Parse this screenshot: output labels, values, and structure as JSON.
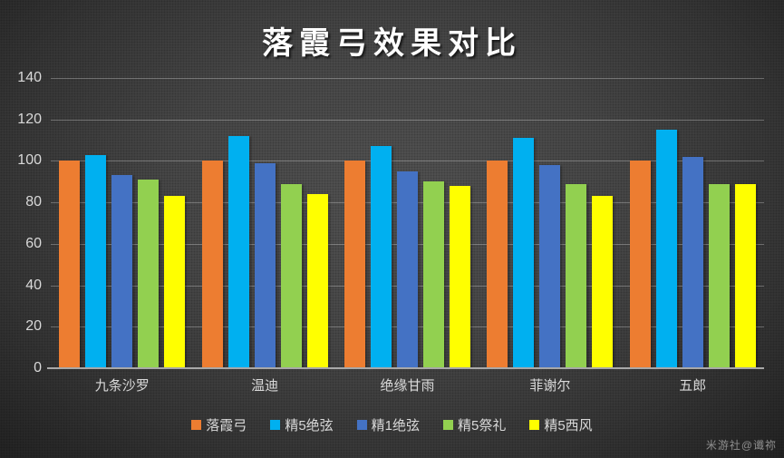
{
  "watermark": "米游社@谶祢",
  "chart_data": {
    "type": "bar",
    "title": "落霞弓效果对比",
    "categories": [
      "九条沙罗",
      "温迪",
      "绝缘甘雨",
      "菲谢尔",
      "五郎"
    ],
    "series": [
      {
        "name": "落霞弓",
        "color": "#ED7D31",
        "values": [
          100,
          100,
          100,
          100,
          100
        ]
      },
      {
        "name": "精5绝弦",
        "color": "#00B0F0",
        "values": [
          103,
          112,
          107,
          111,
          115
        ]
      },
      {
        "name": "精1绝弦",
        "color": "#4472C4",
        "values": [
          93,
          99,
          95,
          98,
          102
        ]
      },
      {
        "name": "精5祭礼",
        "color": "#92D050",
        "values": [
          91,
          89,
          90,
          89,
          89
        ]
      },
      {
        "name": "精5西风",
        "color": "#FFFF00",
        "values": [
          83,
          84,
          88,
          83,
          89
        ]
      }
    ],
    "xlabel": "",
    "ylabel": "",
    "ylim": [
      0,
      140
    ],
    "ytick_step": 20,
    "grid": true,
    "legend_position": "bottom",
    "styles": {
      "background_center": "#555555",
      "background_edge": "#242424",
      "gridline_color": "rgba(255,255,255,0.28)",
      "axis_line_color": "#a8a8a8",
      "label_color": "#d9d9d9",
      "title_color": "#ffffff",
      "watermark_color": "#8f8f8f"
    }
  }
}
